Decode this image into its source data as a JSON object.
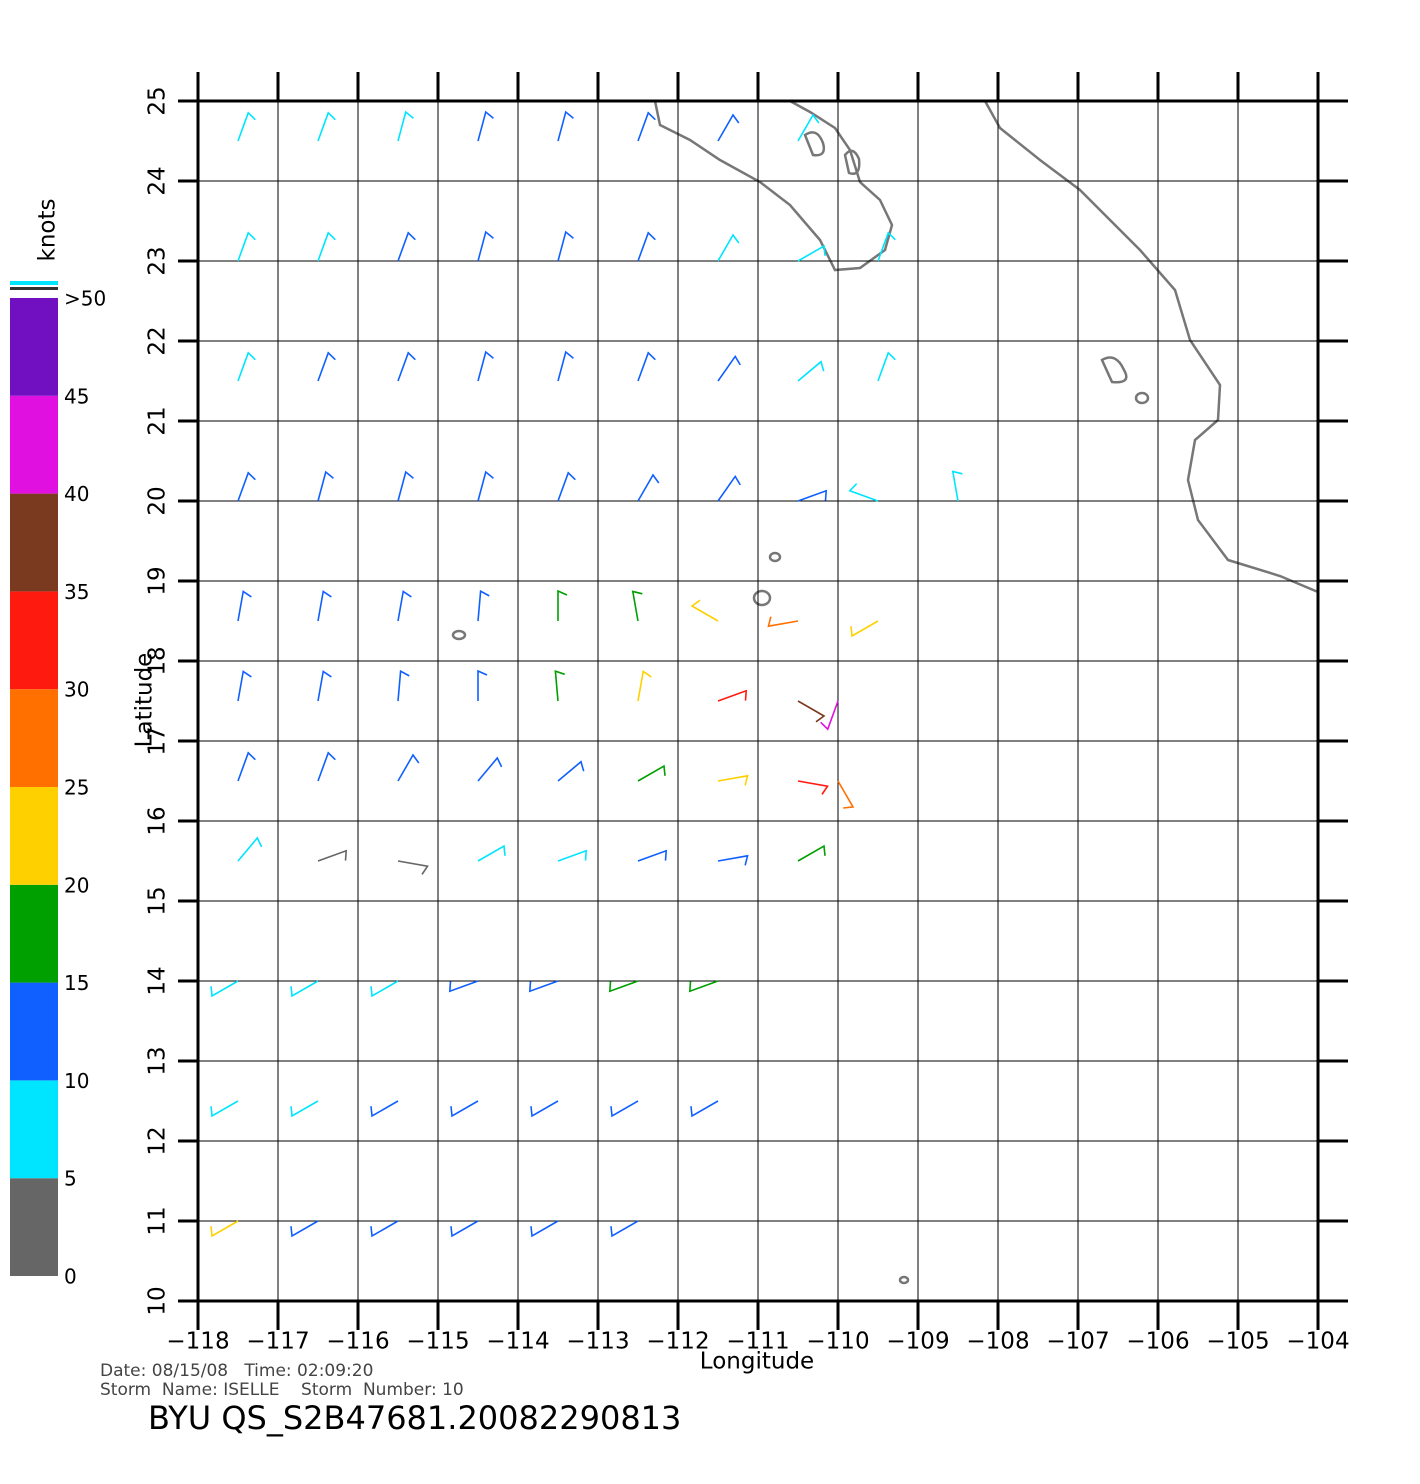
{
  "chart_data": {
    "type": "wind-barb-map",
    "xlabel": "Longitude",
    "ylabel": "Latitude",
    "xlim": [
      -118,
      -104
    ],
    "ylim": [
      10,
      25
    ],
    "xticks": [
      {
        "value": -118,
        "label": "−118"
      },
      {
        "value": -117,
        "label": "−117"
      },
      {
        "value": -116,
        "label": "−116"
      },
      {
        "value": -115,
        "label": "−115"
      },
      {
        "value": -114,
        "label": "−114"
      },
      {
        "value": -113,
        "label": "−113"
      },
      {
        "value": -112,
        "label": "−112"
      },
      {
        "value": -111,
        "label": "−111"
      },
      {
        "value": -110,
        "label": "−110"
      },
      {
        "value": -109,
        "label": "−109"
      },
      {
        "value": -108,
        "label": "−108"
      },
      {
        "value": -107,
        "label": "−107"
      },
      {
        "value": -106,
        "label": "−106"
      },
      {
        "value": -105,
        "label": "−105"
      },
      {
        "value": -104,
        "label": "−104"
      }
    ],
    "yticks": [
      10,
      11,
      12,
      13,
      14,
      15,
      16,
      17,
      18,
      19,
      20,
      21,
      22,
      23,
      24,
      25
    ],
    "grid": true,
    "colorbar": {
      "label": "knots",
      "lim": [
        0,
        50
      ],
      "ticks": [
        0,
        5,
        10,
        15,
        20,
        25,
        30,
        35,
        40,
        45,
        {
          "value": 50,
          "label": ">50"
        }
      ],
      "colors": [
        "#666666",
        "#00e5ff",
        "#1060ff",
        "#00a000",
        "#ffd000",
        "#ff7000",
        "#ff1a10",
        "#7a3a20",
        "#e010e0",
        "#7010c0"
      ]
    },
    "barb_rows": [
      {
        "lat": 24.5,
        "lon": [
          -117.5,
          -116.5,
          -115.5,
          -114.5,
          -113.5,
          -112.5,
          -111.5,
          -110.5
        ],
        "speed": [
          6,
          7,
          8,
          10,
          11,
          11,
          10,
          7
        ],
        "dir": [
          200,
          200,
          195,
          195,
          195,
          200,
          210,
          210
        ]
      },
      {
        "lat": 23,
        "lon": [
          -117.5,
          -116.5,
          -115.5,
          -114.5,
          -113.5,
          -112.5,
          -111.5,
          -110.5,
          -109.5
        ],
        "speed": [
          7,
          8,
          10,
          11,
          11,
          11,
          9,
          5,
          6
        ],
        "dir": [
          200,
          200,
          200,
          195,
          195,
          200,
          210,
          240,
          200
        ]
      },
      {
        "lat": 21.5,
        "lon": [
          -117.5,
          -116.5,
          -115.5,
          -114.5,
          -113.5,
          -112.5,
          -111.5,
          -110.5,
          -109.5
        ],
        "speed": [
          9,
          10,
          11,
          11,
          12,
          12,
          12,
          7,
          6
        ],
        "dir": [
          200,
          200,
          200,
          195,
          195,
          200,
          215,
          230,
          200
        ]
      },
      {
        "lat": 20,
        "lon": [
          -117.5,
          -116.5,
          -115.5,
          -114.5,
          -113.5,
          -112.5,
          -111.5,
          -110.5,
          -109.5,
          -108.5
        ],
        "speed": [
          11,
          12,
          12,
          13,
          12,
          13,
          14,
          10,
          9,
          8
        ],
        "dir": [
          200,
          195,
          195,
          195,
          200,
          210,
          215,
          250,
          110,
          170
        ]
      },
      {
        "lat": 18.5,
        "lon": [
          -117.5,
          -116.5,
          -115.5,
          -114.5,
          -113.5,
          -112.5,
          -111.5,
          -110.5,
          -109.5
        ],
        "speed": [
          11,
          12,
          12,
          14,
          16,
          18,
          23,
          26,
          22
        ],
        "dir": [
          190,
          190,
          190,
          185,
          180,
          170,
          120,
          80,
          60
        ]
      },
      {
        "lat": 17.5,
        "lon": [
          -117.5,
          -116.5,
          -115.5,
          -114.5,
          -113.5,
          -112.5,
          -111.5,
          -110.5,
          -110
        ],
        "speed": [
          12,
          12,
          13,
          14,
          15,
          20,
          30,
          35,
          42
        ],
        "dir": [
          190,
          190,
          185,
          180,
          175,
          190,
          250,
          300,
          20
        ]
      },
      {
        "lat": 16.5,
        "lon": [
          -117.5,
          -116.5,
          -115.5,
          -114.5,
          -113.5,
          -112.5,
          -111.5,
          -110.5,
          -110
        ],
        "speed": [
          12,
          13,
          13,
          12,
          11,
          16,
          22,
          32,
          28
        ],
        "dir": [
          200,
          200,
          210,
          220,
          230,
          240,
          260,
          280,
          330
        ]
      },
      {
        "lat": 15.5,
        "lon": [
          -117.5,
          -116.5,
          -115.5,
          -114.5,
          -113.5,
          -112.5,
          -111.5,
          -110.5
        ],
        "speed": [
          7,
          4,
          3,
          5,
          7,
          11,
          12,
          18
        ],
        "dir": [
          220,
          250,
          280,
          240,
          250,
          250,
          260,
          240
        ]
      },
      {
        "lat": 14,
        "lon": [
          -117.5,
          -116.5,
          -115.5,
          -114.5,
          -113.5,
          -112.5,
          -111.5
        ],
        "speed": [
          5,
          6,
          8,
          10,
          13,
          15,
          17
        ],
        "dir": [
          60,
          60,
          60,
          70,
          70,
          70,
          70
        ]
      },
      {
        "lat": 12.5,
        "lon": [
          -117.5,
          -116.5,
          -115.5,
          -114.5,
          -113.5,
          -112.5,
          -111.5
        ],
        "speed": [
          8,
          9,
          11,
          12,
          12,
          13,
          13
        ],
        "dir": [
          60,
          60,
          60,
          60,
          60,
          60,
          60
        ]
      },
      {
        "lat": 11,
        "lon": [
          -117.5,
          -116.5,
          -115.5,
          -114.5,
          -113.5,
          -112.5
        ],
        "speed": [
          22,
          12,
          11,
          12,
          12,
          11
        ],
        "dir": [
          60,
          60,
          60,
          60,
          60,
          60
        ]
      }
    ],
    "footer": {
      "line1": "Date: 08/15/08   Time: 02:09:20",
      "line2": "Storm  Name: ISELLE    Storm  Number: 10",
      "title": "BYU  QS_S2B47681.20082290813"
    }
  }
}
